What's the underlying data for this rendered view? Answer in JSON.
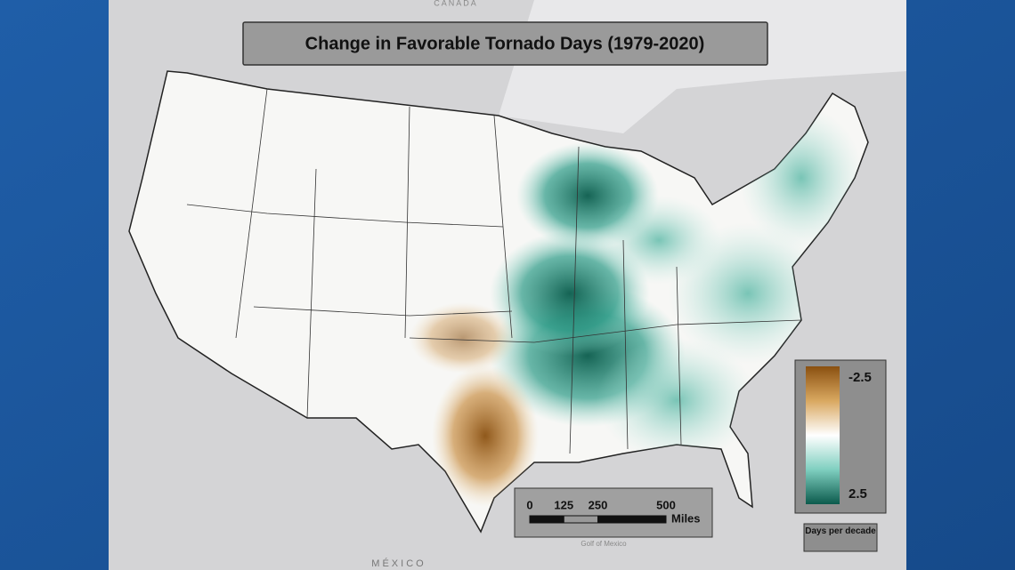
{
  "map": {
    "title": "Change in Favorable Tornado Days  (1979-2020)",
    "place_labels": [
      "CANADA",
      "MÉXICO",
      "Golf of Mexico"
    ],
    "legend": {
      "high_label": "-2.5",
      "low_label": "2.5",
      "caption": "Days per decade"
    },
    "scale_bar": {
      "ticks": [
        0,
        125,
        250,
        500
      ],
      "unit": "Miles"
    }
  }
}
